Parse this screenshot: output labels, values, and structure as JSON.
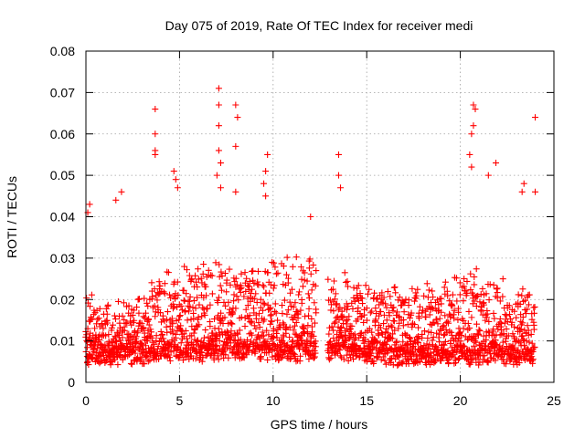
{
  "chart_data": {
    "type": "scatter",
    "title": "Day 075 of 2019, Rate Of TEC Index for receiver medi",
    "xlabel": "GPS time / hours",
    "ylabel": "ROTI / TECUs",
    "xlim": [
      0,
      25
    ],
    "ylim": [
      0,
      0.08
    ],
    "xticks": [
      0,
      5,
      10,
      15,
      20,
      25
    ],
    "xtick_labels": [
      "0",
      "5",
      "10",
      "15",
      "20",
      "25"
    ],
    "yticks": [
      0,
      0.01,
      0.02,
      0.03,
      0.04,
      0.05,
      0.06,
      0.07,
      0.08
    ],
    "ytick_labels": [
      "0",
      "0.01",
      "0.02",
      "0.03",
      "0.04",
      "0.05",
      "0.06",
      "0.07",
      "0.08"
    ],
    "grid": true,
    "marker": "+",
    "marker_color": "#ff0000",
    "data_gap_hours": [
      12.3,
      12.9
    ],
    "x_range_of_data": [
      0,
      24.0
    ],
    "notable_points": [
      {
        "x": 0.1,
        "y": 0.041
      },
      {
        "x": 0.2,
        "y": 0.043
      },
      {
        "x": 1.6,
        "y": 0.044
      },
      {
        "x": 1.9,
        "y": 0.046
      },
      {
        "x": 3.7,
        "y": 0.066
      },
      {
        "x": 3.7,
        "y": 0.06
      },
      {
        "x": 3.7,
        "y": 0.056
      },
      {
        "x": 3.7,
        "y": 0.055
      },
      {
        "x": 4.7,
        "y": 0.051
      },
      {
        "x": 4.8,
        "y": 0.049
      },
      {
        "x": 4.9,
        "y": 0.047
      },
      {
        "x": 7.1,
        "y": 0.071
      },
      {
        "x": 7.1,
        "y": 0.067
      },
      {
        "x": 7.1,
        "y": 0.062
      },
      {
        "x": 7.1,
        "y": 0.056
      },
      {
        "x": 7.2,
        "y": 0.053
      },
      {
        "x": 7.0,
        "y": 0.05
      },
      {
        "x": 7.2,
        "y": 0.047
      },
      {
        "x": 8.0,
        "y": 0.067
      },
      {
        "x": 8.1,
        "y": 0.064
      },
      {
        "x": 8.0,
        "y": 0.057
      },
      {
        "x": 8.0,
        "y": 0.046
      },
      {
        "x": 9.5,
        "y": 0.048
      },
      {
        "x": 9.7,
        "y": 0.055
      },
      {
        "x": 9.6,
        "y": 0.051
      },
      {
        "x": 9.6,
        "y": 0.045
      },
      {
        "x": 12.0,
        "y": 0.04
      },
      {
        "x": 13.5,
        "y": 0.055
      },
      {
        "x": 13.5,
        "y": 0.05
      },
      {
        "x": 13.6,
        "y": 0.047
      },
      {
        "x": 20.7,
        "y": 0.067
      },
      {
        "x": 20.8,
        "y": 0.066
      },
      {
        "x": 20.7,
        "y": 0.062
      },
      {
        "x": 20.6,
        "y": 0.06
      },
      {
        "x": 20.5,
        "y": 0.055
      },
      {
        "x": 20.6,
        "y": 0.052
      },
      {
        "x": 21.9,
        "y": 0.053
      },
      {
        "x": 21.5,
        "y": 0.05
      },
      {
        "x": 23.4,
        "y": 0.048
      },
      {
        "x": 23.3,
        "y": 0.046
      },
      {
        "x": 24.0,
        "y": 0.046
      },
      {
        "x": 24.0,
        "y": 0.064
      }
    ],
    "bulk_profile": {
      "note": "dense cloud of points, every ~0.03 h, typical values by hour",
      "hours": [
        0,
        1,
        2,
        3,
        4,
        5,
        6,
        7,
        8,
        9,
        10,
        11,
        12,
        13,
        14,
        15,
        16,
        17,
        18,
        19,
        20,
        21,
        22,
        23,
        24
      ],
      "base": [
        0.007,
        0.007,
        0.007,
        0.007,
        0.008,
        0.008,
        0.008,
        0.008,
        0.008,
        0.008,
        0.008,
        0.008,
        0.008,
        0.008,
        0.008,
        0.007,
        0.007,
        0.007,
        0.007,
        0.007,
        0.007,
        0.007,
        0.007,
        0.007,
        0.007
      ],
      "spread": [
        0.016,
        0.012,
        0.012,
        0.014,
        0.018,
        0.02,
        0.02,
        0.022,
        0.02,
        0.02,
        0.022,
        0.024,
        0.022,
        0.02,
        0.018,
        0.016,
        0.016,
        0.016,
        0.016,
        0.018,
        0.02,
        0.02,
        0.018,
        0.018,
        0.014
      ]
    }
  }
}
